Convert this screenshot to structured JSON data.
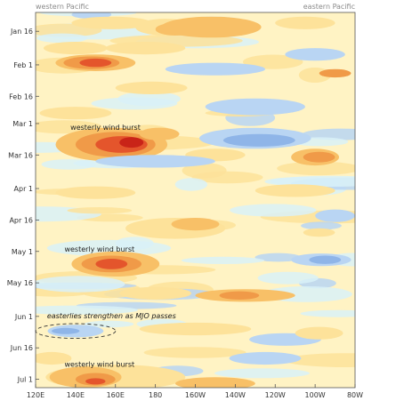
{
  "chart_data": {
    "type": "heatmap",
    "title": "",
    "corner_labels": {
      "left": "western Pacific",
      "right": "eastern Pacific"
    },
    "xlabel": "",
    "ylabel": "",
    "x_ticks": [
      "120E",
      "140E",
      "160E",
      "180",
      "160W",
      "140W",
      "120W",
      "100W",
      "80W"
    ],
    "x_tick_lon": [
      120,
      140,
      160,
      180,
      200,
      220,
      240,
      260,
      280
    ],
    "xlim": [
      120,
      280
    ],
    "y_ticks": [
      "Jan 16",
      "Feb 1",
      "Feb 16",
      "Mar 1",
      "Mar 16",
      "Apr 1",
      "Apr 16",
      "May 1",
      "May 16",
      "Jun 1",
      "Jun 16",
      "Jul 1"
    ],
    "y_tick_day": [
      16,
      32,
      47,
      60,
      75,
      91,
      106,
      121,
      136,
      152,
      167,
      182
    ],
    "ylim_day": [
      7,
      186
    ],
    "colors": {
      "neg2": "#8fb5e8",
      "neg1": "#b9d5f3",
      "neg0": "#d9f1f8",
      "pos0": "#fff3c4",
      "pos1": "#fde29a",
      "pos2": "#f8c067",
      "pos3": "#f09a48",
      "pos4": "#e4552c",
      "pos5": "#c92418"
    },
    "features": [
      {
        "lon": 148,
        "day": 8,
        "dlon": 10,
        "dday": 2,
        "level": -1
      },
      {
        "lon": 158,
        "day": 12,
        "dlon": 20,
        "dday": 3,
        "level": 1
      },
      {
        "lon": 185,
        "day": 14,
        "dlon": 15,
        "dday": 4,
        "level": 1
      },
      {
        "lon": 190,
        "day": 15,
        "dlon": 10,
        "dday": 3,
        "level": 2
      },
      {
        "lon": 208,
        "day": 14,
        "dlon": 25,
        "dday": 5,
        "level": 2
      },
      {
        "lon": 255,
        "day": 12,
        "dlon": 15,
        "dday": 3,
        "level": 1
      },
      {
        "lon": 140,
        "day": 24,
        "dlon": 16,
        "dday": 3,
        "level": 1
      },
      {
        "lon": 175,
        "day": 24,
        "dlon": 20,
        "dday": 3,
        "level": 1
      },
      {
        "lon": 260,
        "day": 27,
        "dlon": 15,
        "dday": 3,
        "level": -1
      },
      {
        "lon": 150,
        "day": 31,
        "dlon": 20,
        "dday": 4,
        "level": 2
      },
      {
        "lon": 148,
        "day": 31,
        "dlon": 14,
        "dday": 3,
        "level": 3
      },
      {
        "lon": 150,
        "day": 31,
        "dlon": 8,
        "dday": 2,
        "level": 4
      },
      {
        "lon": 210,
        "day": 34,
        "dlon": 25,
        "dday": 3,
        "level": -1
      },
      {
        "lon": 270,
        "day": 36,
        "dlon": 8,
        "dday": 2,
        "level": 3
      },
      {
        "lon": 178,
        "day": 43,
        "dlon": 18,
        "dday": 3,
        "level": 1
      },
      {
        "lon": 140,
        "day": 55,
        "dlon": 18,
        "dday": 3,
        "level": 1
      },
      {
        "lon": 230,
        "day": 52,
        "dlon": 25,
        "dday": 4,
        "level": -1
      },
      {
        "lon": 158,
        "day": 70,
        "dlon": 28,
        "dday": 8,
        "level": 2
      },
      {
        "lon": 160,
        "day": 70,
        "dlon": 20,
        "dday": 6,
        "level": 3
      },
      {
        "lon": 163,
        "day": 70,
        "dlon": 13,
        "dday": 4,
        "level": 4
      },
      {
        "lon": 168,
        "day": 69,
        "dlon": 6,
        "dday": 2.5,
        "level": 5
      },
      {
        "lon": 182,
        "day": 65,
        "dlon": 10,
        "dday": 3,
        "level": 2
      },
      {
        "lon": 230,
        "day": 67,
        "dlon": 28,
        "dday": 5,
        "level": -1
      },
      {
        "lon": 232,
        "day": 68,
        "dlon": 18,
        "dday": 3,
        "level": -2
      },
      {
        "lon": 210,
        "day": 75,
        "dlon": 15,
        "dday": 3,
        "level": 1
      },
      {
        "lon": 260,
        "day": 76,
        "dlon": 12,
        "dday": 4,
        "level": 2
      },
      {
        "lon": 262,
        "day": 76,
        "dlon": 8,
        "dday": 2.5,
        "level": 3
      },
      {
        "lon": 180,
        "day": 78,
        "dlon": 30,
        "dday": 3,
        "level": -1
      },
      {
        "lon": 150,
        "day": 93,
        "dlon": 20,
        "dday": 3,
        "level": 1
      },
      {
        "lon": 250,
        "day": 92,
        "dlon": 20,
        "dday": 3,
        "level": 1
      },
      {
        "lon": 190,
        "day": 110,
        "dlon": 25,
        "dday": 5,
        "level": 1
      },
      {
        "lon": 200,
        "day": 108,
        "dlon": 12,
        "dday": 3,
        "level": 2
      },
      {
        "lon": 270,
        "day": 104,
        "dlon": 10,
        "dday": 3,
        "level": -1
      },
      {
        "lon": 262,
        "day": 112,
        "dlon": 8,
        "dday": 2,
        "level": 1
      },
      {
        "lon": 160,
        "day": 127,
        "dlon": 22,
        "dday": 6,
        "level": 2
      },
      {
        "lon": 158,
        "day": 127,
        "dlon": 15,
        "dday": 4,
        "level": 3
      },
      {
        "lon": 158,
        "day": 127,
        "dlon": 8,
        "dday": 2.5,
        "level": 4
      },
      {
        "lon": 263,
        "day": 125,
        "dlon": 15,
        "dday": 3,
        "level": -1
      },
      {
        "lon": 265,
        "day": 125,
        "dlon": 8,
        "dday": 2,
        "level": -2
      },
      {
        "lon": 225,
        "day": 142,
        "dlon": 25,
        "dday": 3,
        "level": 2
      },
      {
        "lon": 222,
        "day": 142,
        "dlon": 10,
        "dday": 2,
        "level": 3
      },
      {
        "lon": 180,
        "day": 141,
        "dlon": 18,
        "dday": 3,
        "level": 1
      },
      {
        "lon": 140,
        "day": 159,
        "dlon": 14,
        "dday": 3,
        "level": -1
      },
      {
        "lon": 135,
        "day": 159,
        "dlon": 7,
        "dday": 1.5,
        "level": -2
      },
      {
        "lon": 200,
        "day": 158,
        "dlon": 28,
        "dday": 3,
        "level": 1
      },
      {
        "lon": 245,
        "day": 163,
        "dlon": 18,
        "dday": 3,
        "level": -1
      },
      {
        "lon": 262,
        "day": 160,
        "dlon": 12,
        "dday": 3,
        "level": 1
      },
      {
        "lon": 128,
        "day": 172,
        "dlon": 10,
        "dday": 3,
        "level": 1
      },
      {
        "lon": 235,
        "day": 172,
        "dlon": 18,
        "dday": 3,
        "level": -1
      },
      {
        "lon": 160,
        "day": 181,
        "dlon": 35,
        "dday": 6,
        "level": 1
      },
      {
        "lon": 145,
        "day": 181,
        "dlon": 18,
        "dday": 5,
        "level": 2
      },
      {
        "lon": 150,
        "day": 182,
        "dlon": 10,
        "dday": 3,
        "level": 3
      },
      {
        "lon": 150,
        "day": 183,
        "dlon": 5,
        "dday": 1.5,
        "level": 4
      },
      {
        "lon": 210,
        "day": 184,
        "dlon": 20,
        "dday": 3,
        "level": 2
      }
    ],
    "annotations": [
      {
        "text": "westerly wind burst",
        "lon": 155,
        "day": 63,
        "style": "normal"
      },
      {
        "text": "westerly wind burst",
        "lon": 152,
        "day": 121,
        "style": "normal"
      },
      {
        "text": "easterlies strengthen as MJO passes",
        "lon": 158,
        "day": 153,
        "style": "italic"
      },
      {
        "text": "westerly wind burst",
        "lon": 152,
        "day": 176,
        "style": "normal"
      }
    ],
    "ellipse": {
      "lon": 140,
      "day": 159,
      "dlon": 20,
      "dday": 3.5
    }
  }
}
